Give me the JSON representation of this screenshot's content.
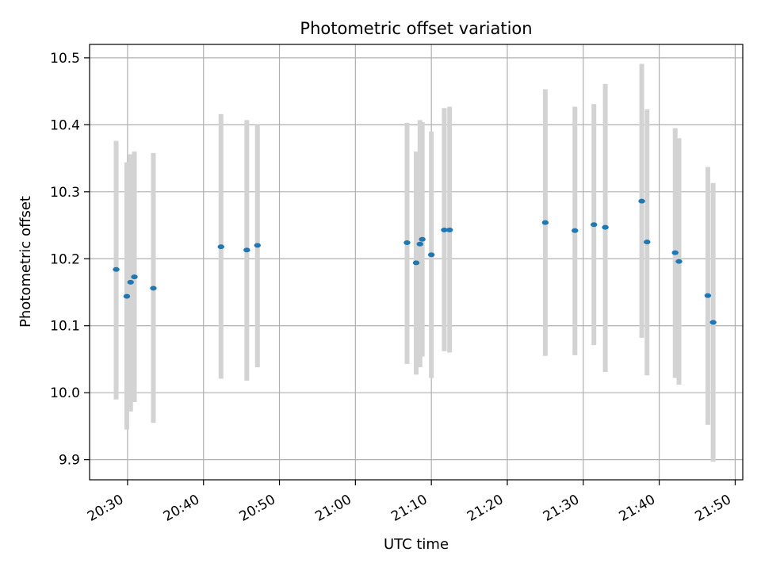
{
  "chart_data": {
    "type": "scatter",
    "title": "Photometric offset variation",
    "xlabel": "UTC time",
    "ylabel": "Photometric offset",
    "xlim": [
      "20:25:00",
      "21:51:00"
    ],
    "ylim": [
      9.87,
      10.52
    ],
    "x_ticks": [
      "20:30",
      "20:40",
      "20:50",
      "21:00",
      "21:10",
      "21:20",
      "21:30",
      "21:40",
      "21:50"
    ],
    "y_ticks": [
      "9.9",
      "10.0",
      "10.1",
      "10.2",
      "10.3",
      "10.4",
      "10.5"
    ],
    "grid": true,
    "colors": {
      "point": "#1f77b4",
      "errorbar": "#d3d3d3",
      "grid": "#b0b0b0",
      "axes": "#000000"
    },
    "points": [
      {
        "time": "20:28:30",
        "value": 10.184,
        "low": 9.99,
        "high": 10.376
      },
      {
        "time": "20:29:54",
        "value": 10.144,
        "low": 9.945,
        "high": 10.344
      },
      {
        "time": "20:30:24",
        "value": 10.165,
        "low": 9.972,
        "high": 10.356
      },
      {
        "time": "20:30:54",
        "value": 10.173,
        "low": 9.986,
        "high": 10.36
      },
      {
        "time": "20:33:24",
        "value": 10.156,
        "low": 9.955,
        "high": 10.358
      },
      {
        "time": "20:42:18",
        "value": 10.218,
        "low": 10.021,
        "high": 10.416
      },
      {
        "time": "20:45:42",
        "value": 10.213,
        "low": 10.018,
        "high": 10.407
      },
      {
        "time": "20:47:06",
        "value": 10.22,
        "low": 10.038,
        "high": 10.4
      },
      {
        "time": "21:06:48",
        "value": 10.224,
        "low": 10.043,
        "high": 10.403
      },
      {
        "time": "21:08:00",
        "value": 10.194,
        "low": 10.027,
        "high": 10.36
      },
      {
        "time": "21:08:30",
        "value": 10.222,
        "low": 10.038,
        "high": 10.407
      },
      {
        "time": "21:08:48",
        "value": 10.229,
        "low": 10.054,
        "high": 10.404
      },
      {
        "time": "21:10:00",
        "value": 10.206,
        "low": 10.022,
        "high": 10.39
      },
      {
        "time": "21:11:42",
        "value": 10.243,
        "low": 10.062,
        "high": 10.425
      },
      {
        "time": "21:12:24",
        "value": 10.243,
        "low": 10.06,
        "high": 10.427
      },
      {
        "time": "21:25:00",
        "value": 10.254,
        "low": 10.055,
        "high": 10.453
      },
      {
        "time": "21:28:54",
        "value": 10.242,
        "low": 10.056,
        "high": 10.427
      },
      {
        "time": "21:31:24",
        "value": 10.251,
        "low": 10.071,
        "high": 10.431
      },
      {
        "time": "21:32:54",
        "value": 10.247,
        "low": 10.031,
        "high": 10.461
      },
      {
        "time": "21:37:42",
        "value": 10.286,
        "low": 10.082,
        "high": 10.491
      },
      {
        "time": "21:38:24",
        "value": 10.225,
        "low": 10.026,
        "high": 10.423
      },
      {
        "time": "21:42:06",
        "value": 10.209,
        "low": 10.022,
        "high": 10.395
      },
      {
        "time": "21:42:36",
        "value": 10.196,
        "low": 10.012,
        "high": 10.38
      },
      {
        "time": "21:46:24",
        "value": 10.145,
        "low": 9.952,
        "high": 10.337
      },
      {
        "time": "21:47:06",
        "value": 10.105,
        "low": 9.897,
        "high": 10.313
      }
    ]
  }
}
